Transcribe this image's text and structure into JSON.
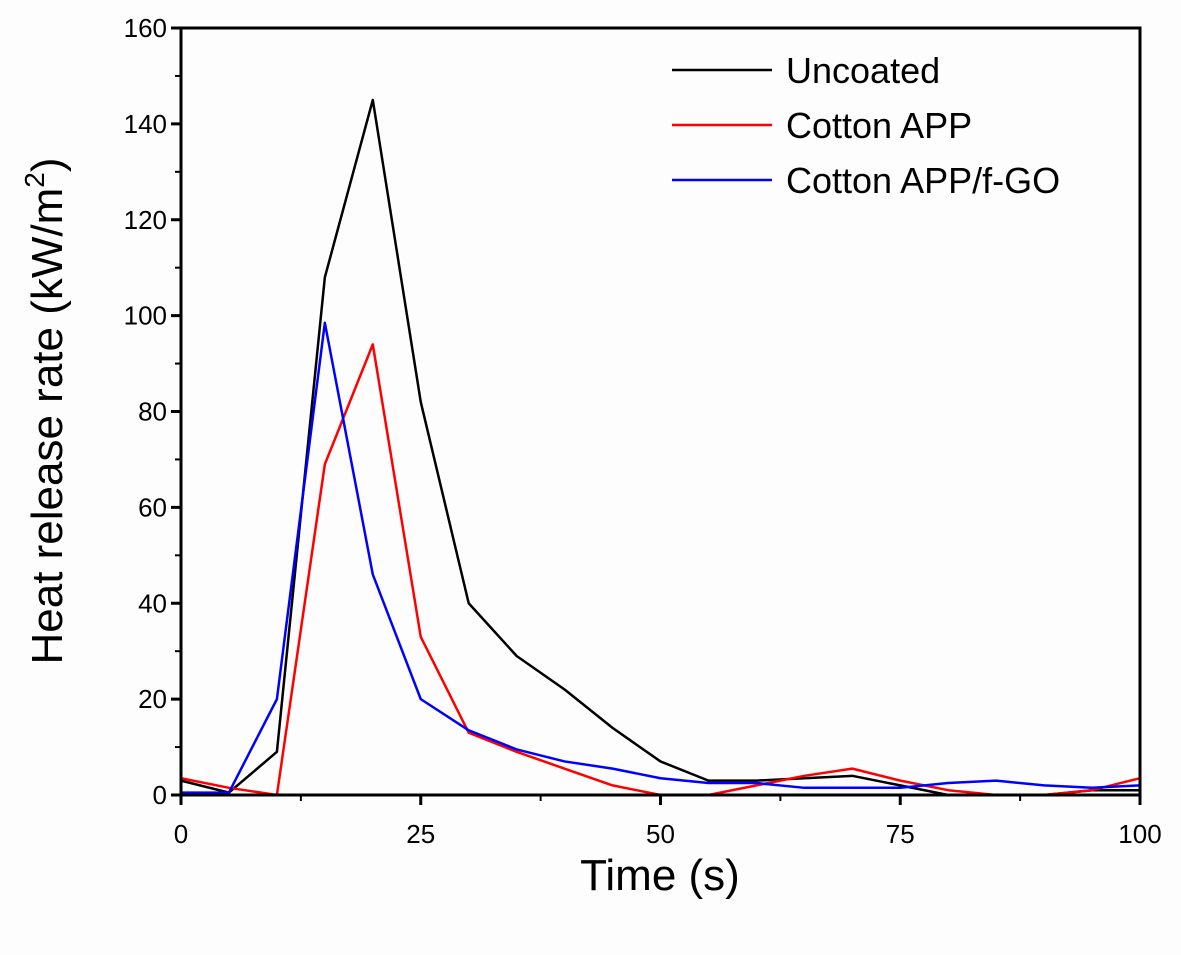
{
  "chart_data": {
    "type": "line",
    "title": "",
    "xlabel": "Time (s)",
    "ylabel": "Heat release rate (kW/m",
    "ylabel_sup": "2",
    "ylabel_end": ")",
    "xlim": [
      0,
      100
    ],
    "ylim": [
      0,
      160
    ],
    "xticks": [
      0,
      25,
      50,
      75,
      100
    ],
    "yticks": [
      0,
      20,
      40,
      60,
      80,
      100,
      120,
      140,
      160
    ],
    "grid": false,
    "legend_position": "top-right",
    "x": [
      0,
      5,
      10,
      15,
      20,
      25,
      30,
      35,
      40,
      45,
      50,
      55,
      60,
      65,
      70,
      75,
      80,
      85,
      90,
      95,
      100
    ],
    "series": [
      {
        "name": "Uncoated",
        "color": "#000000",
        "values": [
          3,
          0.5,
          9,
          108,
          145,
          82,
          40,
          29,
          22,
          14,
          7,
          3,
          3,
          3.5,
          4,
          2,
          0,
          0,
          0,
          1,
          1
        ]
      },
      {
        "name": "Cotton APP",
        "color": "#ff0000",
        "values": [
          3.5,
          1.5,
          0,
          69,
          94,
          33,
          13,
          9,
          5.5,
          2,
          0,
          0,
          2,
          4,
          5.5,
          3,
          1,
          0,
          0,
          1,
          3.5
        ]
      },
      {
        "name": "Cotton APP/f-GO",
        "color": "#0000ff",
        "values": [
          0.5,
          0.5,
          20,
          98.5,
          46,
          20,
          13.5,
          9.5,
          7,
          5.5,
          3.5,
          2.5,
          2.5,
          1.5,
          1.5,
          1.5,
          2.5,
          3,
          2,
          1.5,
          2
        ]
      }
    ]
  }
}
